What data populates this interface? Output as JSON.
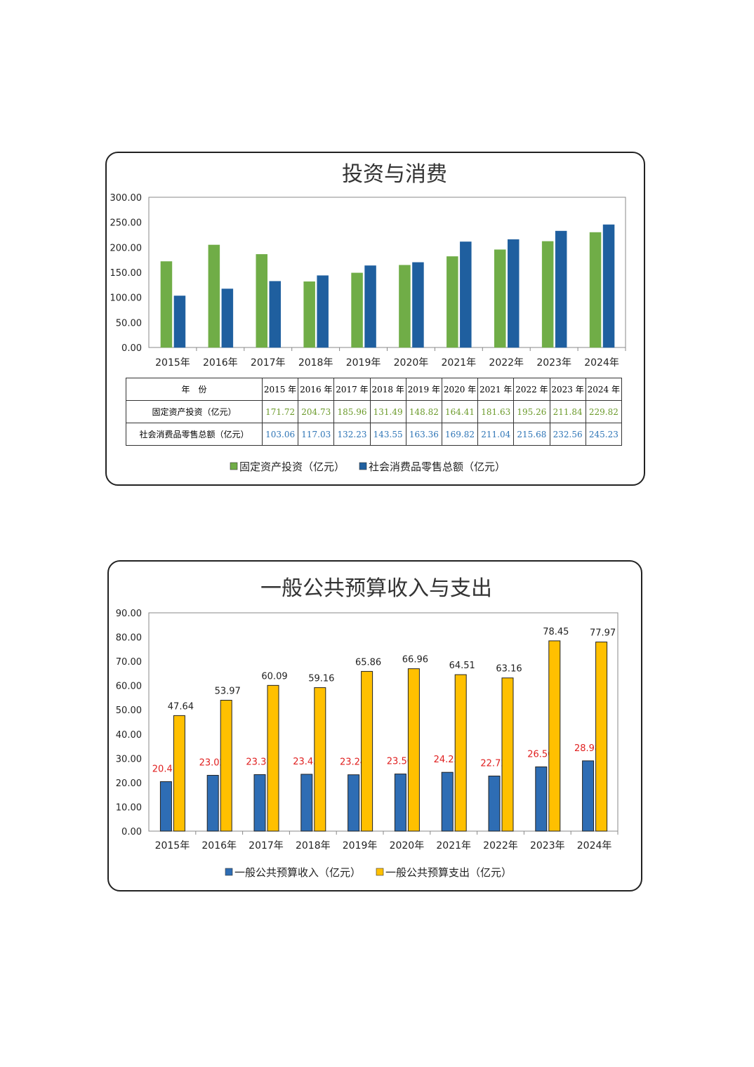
{
  "chart_data": [
    {
      "type": "bar",
      "title": "投资与消费",
      "categories": [
        "2015年",
        "2016年",
        "2017年",
        "2018年",
        "2019年",
        "2020年",
        "2021年",
        "2022年",
        "2023年",
        "2024年"
      ],
      "ylim": [
        0,
        300
      ],
      "yticks": [
        "0.00",
        "50.00",
        "100.00",
        "150.00",
        "200.00",
        "250.00",
        "300.00"
      ],
      "legend": "bottom",
      "series": [
        {
          "name": "固定资产投资（亿元）",
          "color": "#70AD47",
          "values": [
            171.72,
            204.73,
            185.96,
            131.49,
            148.82,
            164.41,
            181.63,
            195.26,
            211.84,
            229.82
          ],
          "labels": [
            "171.72",
            "204.73",
            "185.96",
            "131.49",
            "148.82",
            "164.41",
            "181.63",
            "195.26",
            "211.84",
            "229.82"
          ]
        },
        {
          "name": "社会消费品零售总额（亿元）",
          "color": "#1F5F9F",
          "values": [
            103.06,
            117.03,
            132.23,
            143.55,
            163.36,
            169.82,
            211.04,
            215.68,
            232.56,
            245.23
          ],
          "labels": [
            "103.06",
            "117.03",
            "132.23",
            "143.55",
            "163.36",
            "169.82",
            "211.04",
            "215.68",
            "232.56",
            "245.23"
          ]
        }
      ],
      "table": {
        "header": "年　份",
        "years": [
          "2015 年",
          "2016 年",
          "2017 年",
          "2018 年",
          "2019 年",
          "2020 年",
          "2021 年",
          "2022 年",
          "2023 年",
          "2024 年"
        ]
      }
    },
    {
      "type": "bar",
      "title": "一般公共预算收入与支出",
      "categories": [
        "2015年",
        "2016年",
        "2017年",
        "2018年",
        "2019年",
        "2020年",
        "2021年",
        "2022年",
        "2023年",
        "2024年"
      ],
      "ylim": [
        0,
        90
      ],
      "yticks": [
        "0.00",
        "10.00",
        "20.00",
        "30.00",
        "40.00",
        "50.00",
        "60.00",
        "70.00",
        "80.00",
        "90.00"
      ],
      "legend": "bottom",
      "series": [
        {
          "name": "一般公共预算收入（亿元）",
          "color": "#2E6DB4",
          "label_color": "#E02020",
          "values": [
            20.41,
            23.02,
            23.31,
            23.45,
            23.24,
            23.56,
            24.25,
            22.72,
            26.5,
            28.98
          ],
          "labels": [
            "20.41",
            "23.02",
            "23.31",
            "23.45",
            "23.24",
            "23.56",
            "24.25",
            "22.72",
            "26.50",
            "28.98"
          ]
        },
        {
          "name": "一般公共预算支出（亿元）",
          "color": "#FFC000",
          "label_color": "#222222",
          "values": [
            47.64,
            53.97,
            60.09,
            59.16,
            65.86,
            66.96,
            64.51,
            63.16,
            78.45,
            77.97
          ],
          "labels": [
            "47.64",
            "53.97",
            "60.09",
            "59.16",
            "65.86",
            "66.96",
            "64.51",
            "63.16",
            "78.45",
            "77.97"
          ]
        }
      ]
    }
  ]
}
